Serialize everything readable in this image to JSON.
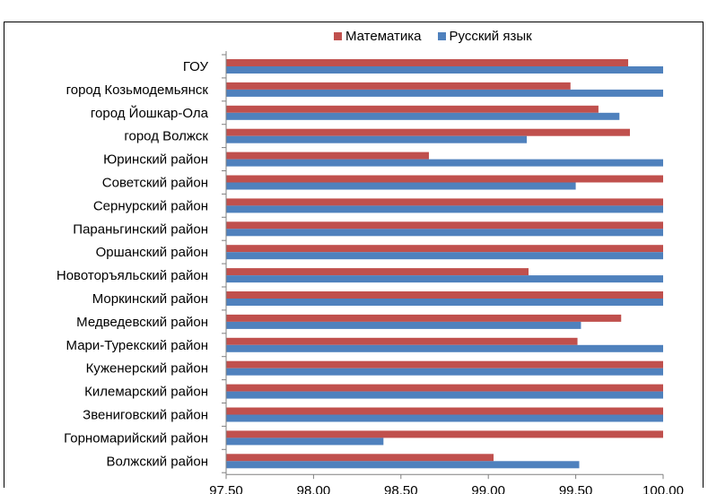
{
  "chart_data": {
    "type": "bar",
    "orientation": "horizontal",
    "categories": [
      "ГОУ",
      "город Козьмодемьянск",
      "город Йошкар-Ола",
      "город Волжск",
      "Юринский район",
      "Советский район",
      "Сернурский район",
      "Параньгинский район",
      "Оршанский район",
      "Новоторъяльский район",
      "Моркинский район",
      "Медведевский район",
      "Мари-Турекский район",
      "Куженерский район",
      "Килемарский район",
      "Звениговский район",
      "Горномарийский район",
      "Волжский район"
    ],
    "series": [
      {
        "name": "Математика",
        "color": "#c0504d",
        "values": [
          99.8,
          99.47,
          99.63,
          99.81,
          98.66,
          100.0,
          100.0,
          100.0,
          100.0,
          99.23,
          100.0,
          99.76,
          99.51,
          100.0,
          100.0,
          100.0,
          100.0,
          99.03
        ]
      },
      {
        "name": "Русский язык",
        "color": "#4f81bd",
        "values": [
          100.0,
          100.0,
          99.75,
          99.22,
          100.0,
          99.5,
          100.0,
          100.0,
          100.0,
          100.0,
          100.0,
          99.53,
          100.0,
          100.0,
          100.0,
          100.0,
          98.4,
          99.52
        ]
      }
    ],
    "xlim": [
      97.5,
      100.0
    ],
    "xticks": [
      97.5,
      98.0,
      98.5,
      99.0,
      99.5,
      100.0
    ],
    "xtick_labels": [
      "97,50",
      "98,00",
      "98,50",
      "99,00",
      "99,50",
      "100,00"
    ],
    "title": "",
    "xlabel": "",
    "ylabel": "",
    "grid": false,
    "legend_position": "top"
  }
}
